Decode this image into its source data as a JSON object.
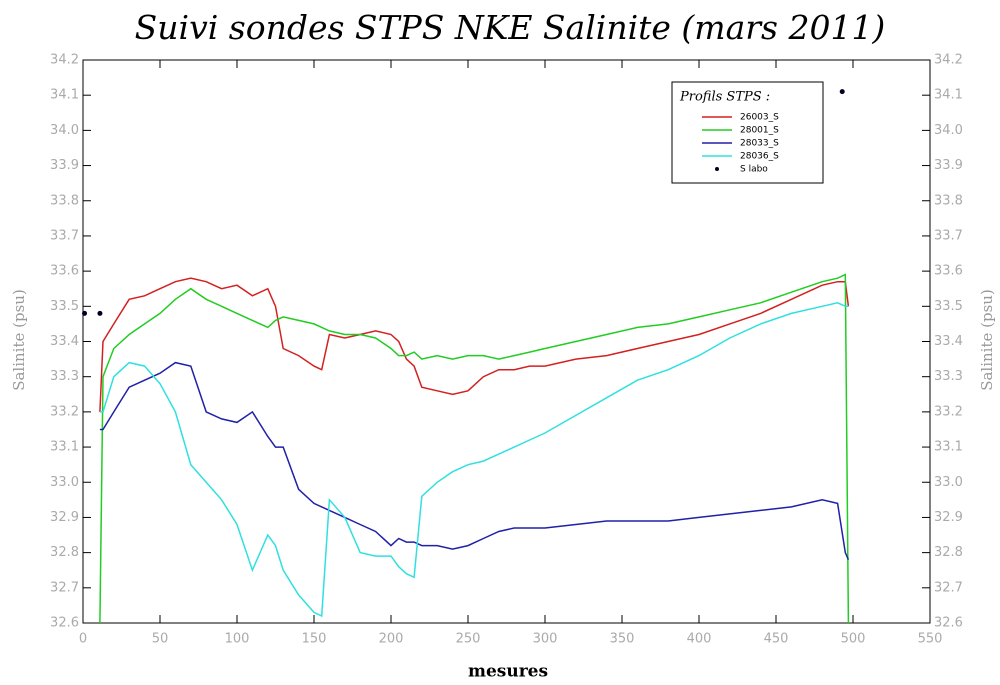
{
  "chart_data": {
    "type": "line",
    "title": "Suivi sondes STPS NKE Salinite (mars 2011)",
    "x_label": "mesures",
    "y_label": "Salinite (psu)",
    "y2_label": "Salinite (psu)",
    "legend_title": "Profils STPS :",
    "legend": "upper right",
    "xlim": [
      0,
      550
    ],
    "xticks": [
      0,
      50,
      100,
      150,
      200,
      250,
      300,
      350,
      400,
      450,
      500,
      550
    ],
    "ylim": [
      32.6,
      34.2
    ],
    "yticks": [
      32.6,
      32.7,
      32.8,
      32.9,
      {
        "value": 33.0,
        "label": "33.0"
      },
      33.1,
      33.2,
      33.3,
      33.4,
      33.5,
      33.6,
      33.7,
      33.8,
      33.9,
      {
        "value": 34.0,
        "label": "34.0"
      },
      34.1,
      34.2
    ],
    "x": [
      11,
      13,
      20,
      30,
      40,
      50,
      60,
      70,
      80,
      90,
      100,
      110,
      120,
      125,
      130,
      140,
      150,
      155,
      160,
      170,
      180,
      190,
      200,
      205,
      210,
      215,
      220,
      230,
      240,
      250,
      260,
      270,
      280,
      290,
      300,
      320,
      340,
      360,
      380,
      400,
      420,
      440,
      460,
      480,
      490,
      495,
      497
    ],
    "series": [
      {
        "name": "26003_S",
        "color": "#d42020",
        "values": [
          33.2,
          33.4,
          33.45,
          33.52,
          33.53,
          33.55,
          33.57,
          33.58,
          33.57,
          33.55,
          33.56,
          33.53,
          33.55,
          33.5,
          33.38,
          33.36,
          33.33,
          33.32,
          33.42,
          33.41,
          33.42,
          33.43,
          33.42,
          33.4,
          33.35,
          33.33,
          33.27,
          33.26,
          33.25,
          33.26,
          33.3,
          33.32,
          33.32,
          33.33,
          33.33,
          33.35,
          33.36,
          33.38,
          33.4,
          33.42,
          33.45,
          33.48,
          33.52,
          33.56,
          33.57,
          33.57,
          33.5
        ]
      },
      {
        "name": "28001_S",
        "color": "#22cc22",
        "values": [
          32.6,
          33.3,
          33.38,
          33.42,
          33.45,
          33.48,
          33.52,
          33.55,
          33.52,
          33.5,
          33.48,
          33.46,
          33.44,
          33.46,
          33.47,
          33.46,
          33.45,
          33.44,
          33.43,
          33.42,
          33.42,
          33.41,
          33.38,
          33.36,
          33.36,
          33.37,
          33.35,
          33.36,
          33.35,
          33.36,
          33.36,
          33.35,
          33.36,
          33.37,
          33.38,
          33.4,
          33.42,
          33.44,
          33.45,
          33.47,
          33.49,
          33.51,
          33.54,
          33.57,
          33.58,
          33.59,
          32.6
        ]
      },
      {
        "name": "28033_S",
        "color": "#2020a8",
        "values": [
          33.15,
          33.15,
          33.2,
          33.27,
          33.29,
          33.31,
          33.34,
          33.33,
          33.2,
          33.18,
          33.17,
          33.2,
          33.13,
          33.1,
          33.1,
          32.98,
          32.94,
          32.93,
          32.92,
          32.9,
          32.88,
          32.86,
          32.82,
          32.84,
          32.83,
          32.83,
          32.82,
          32.82,
          32.81,
          32.82,
          32.84,
          32.86,
          32.87,
          32.87,
          32.87,
          32.88,
          32.89,
          32.89,
          32.89,
          32.9,
          32.91,
          32.92,
          32.93,
          32.95,
          32.94,
          32.8,
          32.78
        ]
      },
      {
        "name": "28036_S",
        "color": "#30e0e0",
        "values": [
          33.2,
          33.2,
          33.3,
          33.34,
          33.33,
          33.28,
          33.2,
          33.05,
          33.0,
          32.95,
          32.88,
          32.75,
          32.85,
          32.82,
          32.75,
          32.68,
          32.63,
          32.62,
          32.95,
          32.9,
          32.8,
          32.79,
          32.79,
          32.76,
          32.74,
          32.73,
          32.96,
          33.0,
          33.03,
          33.05,
          33.06,
          33.08,
          33.1,
          33.12,
          33.14,
          33.19,
          33.24,
          33.29,
          33.32,
          33.36,
          33.41,
          33.45,
          33.48,
          33.5,
          33.51,
          33.5,
          33.5
        ]
      },
      {
        "name": "S labo",
        "color": "#000022",
        "marker": "dot",
        "x": [
          1,
          11,
          493
        ],
        "values": [
          33.48,
          33.48,
          34.11
        ]
      }
    ]
  }
}
